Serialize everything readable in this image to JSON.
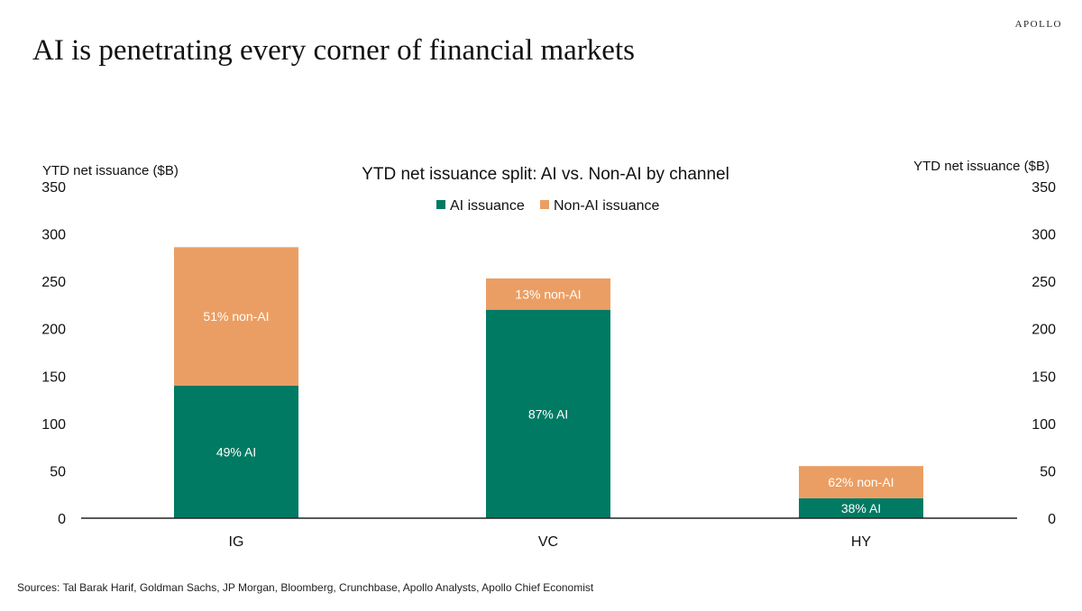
{
  "brand": "APOLLO",
  "headline": "AI is penetrating every corner of  financial markets",
  "sources": "Sources: Tal Barak Harif, Goldman Sachs, JP Morgan, Bloomberg, Crunchbase, Apollo Analysts, Apollo Chief Economist",
  "colors": {
    "ai": "#007a63",
    "non_ai": "#eb9e63"
  },
  "chart_data": {
    "type": "bar",
    "stacked": true,
    "title": "YTD net issuance split: AI vs. Non-AI by channel",
    "ylabel_left": "YTD net issuance ($B)",
    "ylabel_right": "YTD net issuance ($B)",
    "ylim": [
      0,
      350
    ],
    "yticks": [
      "0",
      "50",
      "100",
      "150",
      "200",
      "250",
      "300",
      "350"
    ],
    "categories": [
      "IG",
      "VC",
      "HY"
    ],
    "series": [
      {
        "name": "AI issuance",
        "values": [
          140,
          220,
          21
        ],
        "labels": [
          "49% AI",
          "87% AI",
          "38% AI"
        ]
      },
      {
        "name": "Non-AI issuance",
        "values": [
          146,
          33,
          34
        ],
        "labels": [
          "51% non-AI",
          "13% non-AI",
          "62% non-AI"
        ]
      }
    ],
    "legend": "top-center",
    "grid": false
  }
}
